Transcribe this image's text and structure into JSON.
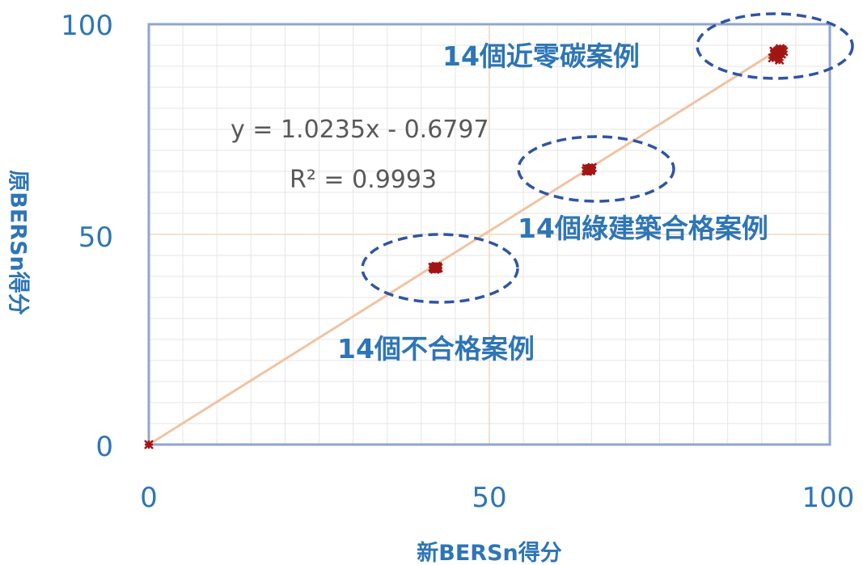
{
  "chart_data": {
    "type": "scatter",
    "title": "",
    "xlabel": "新BERSn得分",
    "ylabel": "原BERSn得分",
    "xlim": [
      0,
      100
    ],
    "ylim": [
      0,
      100
    ],
    "x_ticks": [
      "0",
      "50",
      "100"
    ],
    "y_ticks": [
      "0",
      "50",
      "100"
    ],
    "grid": true,
    "trendline": {
      "equation": "y = 1.0235x - 0.6797",
      "r_squared": "R² = 0.9993",
      "slope": 1.0235,
      "intercept": -0.6797
    },
    "colors": {
      "points": "#a31515",
      "trend": "#f0c4a2",
      "labels": "#2e75b6",
      "ellipse": "#2f55a4"
    },
    "series": [
      {
        "x": [
          0
        ],
        "y": [
          0
        ]
      },
      {
        "x": [
          42.0,
          42.3,
          41.8,
          42.4,
          42.1,
          41.9,
          42.2,
          42.0,
          42.5,
          41.7,
          42.3,
          42.1,
          41.9,
          42.2
        ],
        "y": [
          42.0,
          42.2,
          41.9,
          42.3,
          41.8,
          42.1,
          42.4,
          41.7,
          42.0,
          42.2,
          41.9,
          42.3,
          42.1,
          42.0
        ]
      },
      {
        "x": [
          64.5,
          64.8,
          64.2,
          65.0,
          64.6,
          64.9,
          64.3,
          64.7,
          65.1,
          64.4,
          64.8,
          64.6,
          64.5,
          64.9
        ],
        "y": [
          65.3,
          65.6,
          65.1,
          65.8,
          65.4,
          65.2,
          65.7,
          65.5,
          65.9,
          65.0,
          65.3,
          65.6,
          65.4,
          65.5
        ]
      },
      {
        "x": [
          92.0,
          92.5,
          91.6,
          92.8,
          93.2,
          92.3,
          91.9,
          92.6,
          93.0,
          92.2,
          91.8,
          92.9,
          92.4,
          92.7
        ],
        "y": [
          93.2,
          93.8,
          92.0,
          94.0,
          93.5,
          92.6,
          93.0,
          91.5,
          93.9,
          92.3,
          93.6,
          92.9,
          93.3,
          94.2
        ]
      }
    ],
    "annotations": [
      {
        "label": "14個近零碳案例",
        "group": 3
      },
      {
        "label": "14個綠建築合格案例",
        "group": 2
      },
      {
        "label": "14個不合格案例",
        "group": 1
      }
    ]
  }
}
